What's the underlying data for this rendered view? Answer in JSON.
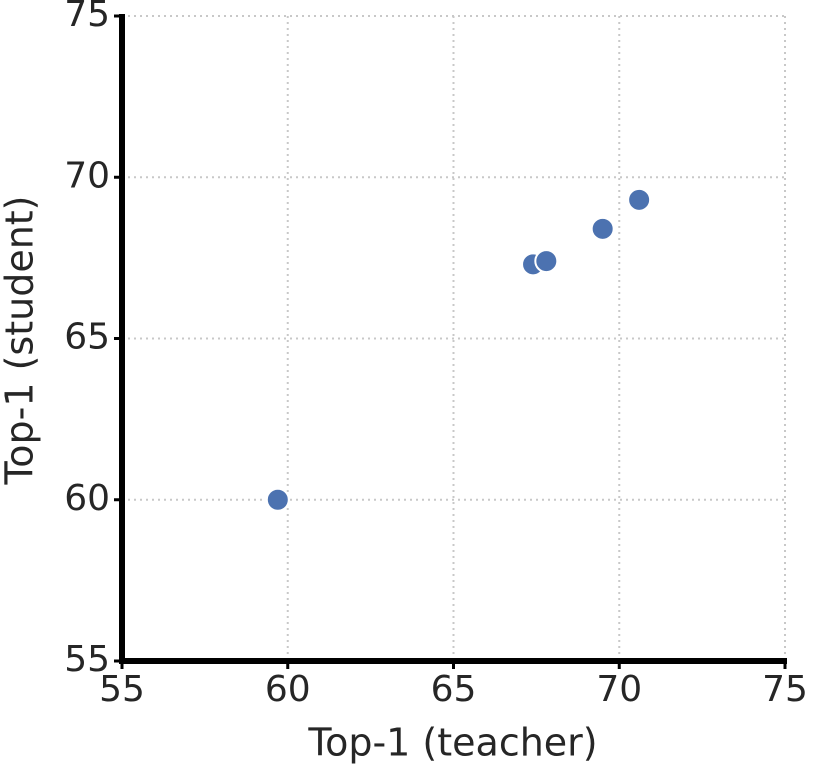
{
  "chart_data": {
    "type": "scatter",
    "x_label": "Top-1 (teacher)",
    "y_label": "Top-1 (student)",
    "x": [
      59.7,
      67.4,
      67.8,
      69.5,
      70.6
    ],
    "values": [
      60.0,
      67.3,
      67.4,
      68.4,
      69.3
    ],
    "color": "#4c72b0",
    "xlim": [
      55,
      75
    ],
    "ylim": [
      55,
      75
    ],
    "xticks": [
      55,
      60,
      65,
      70,
      75
    ],
    "yticks": [
      55,
      60,
      65,
      70,
      75
    ],
    "grid": true
  }
}
